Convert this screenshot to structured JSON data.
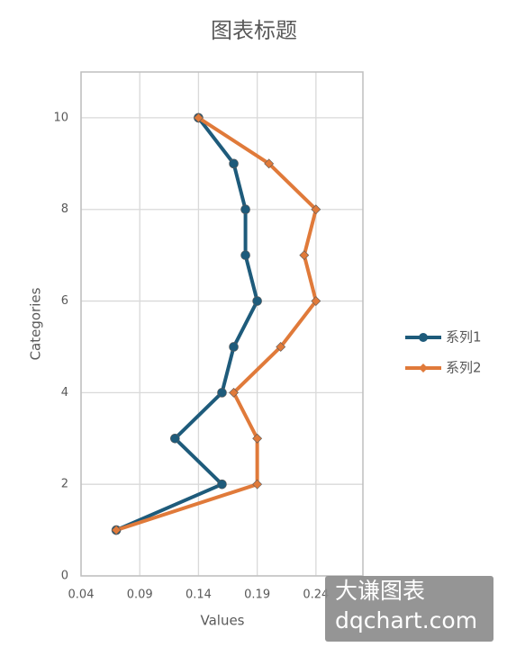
{
  "chart_data": {
    "type": "line",
    "title": "图表标题",
    "x_label": "Values",
    "y_label": "Categories",
    "y": [
      1,
      2,
      3,
      4,
      5,
      6,
      7,
      8,
      9,
      10
    ],
    "series": [
      {
        "name": "系列1",
        "color": "#1e5b7b",
        "marker": "circle",
        "values": [
          0.07,
          0.16,
          0.12,
          0.16,
          0.17,
          0.19,
          0.18,
          0.18,
          0.17,
          0.14
        ]
      },
      {
        "name": "系列2",
        "color": "#e07a3a",
        "marker": "diamond",
        "values": [
          0.07,
          0.19,
          0.19,
          0.17,
          0.21,
          0.24,
          0.23,
          0.24,
          0.2,
          0.14
        ]
      }
    ],
    "xlim": [
      0.04,
      0.28
    ],
    "xticks": [
      0.04,
      0.09,
      0.14,
      0.19,
      0.24
    ],
    "ylim": [
      0,
      11
    ],
    "yticks": [
      0,
      2,
      4,
      6,
      8,
      10
    ],
    "grid": true,
    "legend": "right"
  },
  "watermark": [
    "大谦图表",
    "dqchart.com"
  ]
}
